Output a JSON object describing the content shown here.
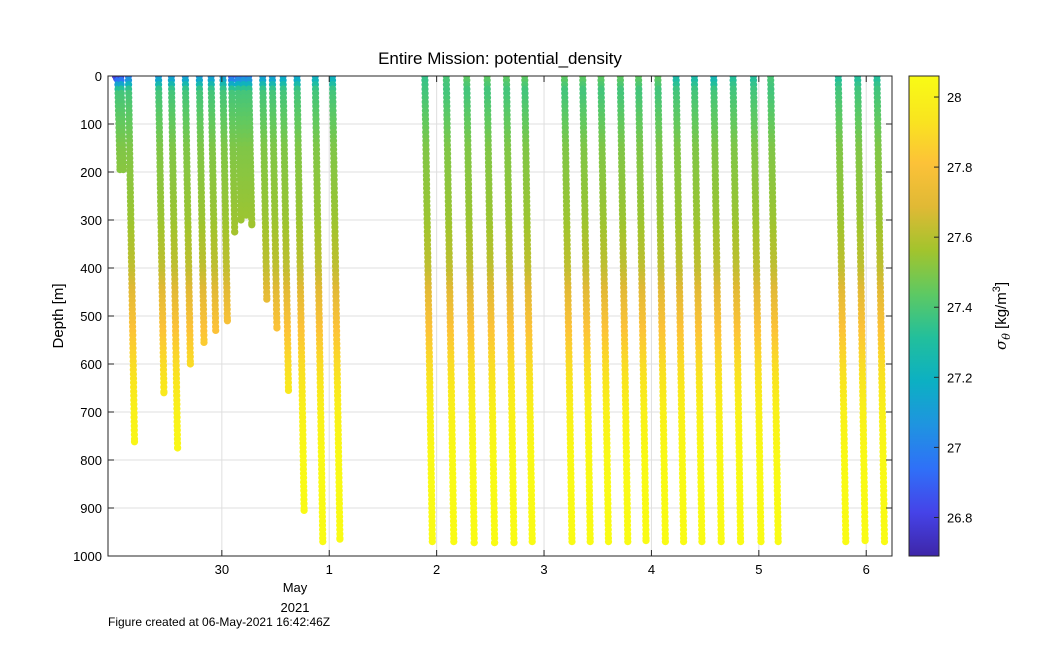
{
  "chart_data": {
    "type": "scatter",
    "title": "Entire Mission: potential_density",
    "xlabel": "",
    "ylabel": "Depth [m]",
    "x_ticks": [
      "30",
      "1",
      "2",
      "3",
      "4",
      "5",
      "6"
    ],
    "x_tick_month_label": "May",
    "x_tick_year_label": "2021",
    "y_ticks": [
      "0",
      "100",
      "200",
      "300",
      "400",
      "500",
      "600",
      "700",
      "800",
      "900",
      "1000"
    ],
    "ylim": [
      0,
      1000
    ],
    "y_reversed": true,
    "grid": true,
    "colorbar": {
      "label_symbol": "σ",
      "label_subscript": "θ",
      "label_units_prefix": " [kg/m",
      "label_units_exp": "3",
      "label_units_suffix": "]",
      "range": [
        26.69,
        28.06
      ],
      "ticks": [
        "26.8",
        "27",
        "27.2",
        "27.4",
        "27.6",
        "27.8",
        "28"
      ],
      "colormap": [
        "#3e26a8",
        "#4543e8",
        "#2f70f8",
        "#1f94e0",
        "#0cb0c3",
        "#22bf9c",
        "#5dc963",
        "#a2c42d",
        "#e0b935",
        "#fcc238",
        "#f9e51f",
        "#f9fb15"
      ]
    },
    "casts": [
      {
        "t": 29.01,
        "max_depth": 5,
        "shallow_density": 26.72
      },
      {
        "t": 29.03,
        "max_depth": 195,
        "shallow_density": 26.75
      },
      {
        "t": 29.06,
        "max_depth": 195,
        "shallow_density": 26.78
      },
      {
        "t": 29.13,
        "max_depth": 762,
        "shallow_density": 26.95
      },
      {
        "t": 29.41,
        "max_depth": 660,
        "shallow_density": 27.05
      },
      {
        "t": 29.53,
        "max_depth": 775,
        "shallow_density": 27.05
      },
      {
        "t": 29.66,
        "max_depth": 600,
        "shallow_density": 27.05
      },
      {
        "t": 29.79,
        "max_depth": 555,
        "shallow_density": 27.05
      },
      {
        "t": 29.9,
        "max_depth": 530,
        "shallow_density": 27.05
      },
      {
        "t": 30.01,
        "max_depth": 510,
        "shallow_density": 27.05
      },
      {
        "t": 30.09,
        "max_depth": 325,
        "shallow_density": 26.85
      },
      {
        "t": 30.15,
        "max_depth": 300,
        "shallow_density": 26.9
      },
      {
        "t": 30.2,
        "max_depth": 290,
        "shallow_density": 26.95
      },
      {
        "t": 30.25,
        "max_depth": 310,
        "shallow_density": 26.95
      },
      {
        "t": 30.38,
        "max_depth": 465,
        "shallow_density": 27.05
      },
      {
        "t": 30.47,
        "max_depth": 525,
        "shallow_density": 27.05
      },
      {
        "t": 30.57,
        "max_depth": 655,
        "shallow_density": 27.1
      },
      {
        "t": 30.7,
        "max_depth": 905,
        "shallow_density": 27.1
      },
      {
        "t": 30.87,
        "max_depth": 970,
        "shallow_density": 27.15
      },
      {
        "t": 31.03,
        "max_depth": 965,
        "shallow_density": 27.15
      },
      {
        "t": 31.89,
        "max_depth": 970,
        "shallow_density": 27.35
      },
      {
        "t": 32.09,
        "max_depth": 970,
        "shallow_density": 27.4
      },
      {
        "t": 32.28,
        "max_depth": 972,
        "shallow_density": 27.45
      },
      {
        "t": 32.47,
        "max_depth": 972,
        "shallow_density": 27.45
      },
      {
        "t": 32.65,
        "max_depth": 972,
        "shallow_density": 27.45
      },
      {
        "t": 32.82,
        "max_depth": 970,
        "shallow_density": 27.45
      },
      {
        "t": 33.19,
        "max_depth": 970,
        "shallow_density": 27.45
      },
      {
        "t": 33.36,
        "max_depth": 970,
        "shallow_density": 27.45
      },
      {
        "t": 33.53,
        "max_depth": 970,
        "shallow_density": 27.45
      },
      {
        "t": 33.71,
        "max_depth": 970,
        "shallow_density": 27.45
      },
      {
        "t": 33.88,
        "max_depth": 968,
        "shallow_density": 27.45
      },
      {
        "t": 34.06,
        "max_depth": 970,
        "shallow_density": 27.45
      },
      {
        "t": 34.23,
        "max_depth": 970,
        "shallow_density": 27.25
      },
      {
        "t": 34.4,
        "max_depth": 970,
        "shallow_density": 27.25
      },
      {
        "t": 34.58,
        "max_depth": 970,
        "shallow_density": 27.2
      },
      {
        "t": 34.76,
        "max_depth": 970,
        "shallow_density": 27.3
      },
      {
        "t": 34.95,
        "max_depth": 970,
        "shallow_density": 27.3
      },
      {
        "t": 35.11,
        "max_depth": 970,
        "shallow_density": 27.4
      },
      {
        "t": 35.74,
        "max_depth": 970,
        "shallow_density": 27.3
      },
      {
        "t": 35.92,
        "max_depth": 968,
        "shallow_density": 27.3
      },
      {
        "t": 36.1,
        "max_depth": 970,
        "shallow_density": 27.3
      }
    ]
  },
  "footer": {
    "text": "Figure created at 06-May-2021 16:42:46Z"
  }
}
